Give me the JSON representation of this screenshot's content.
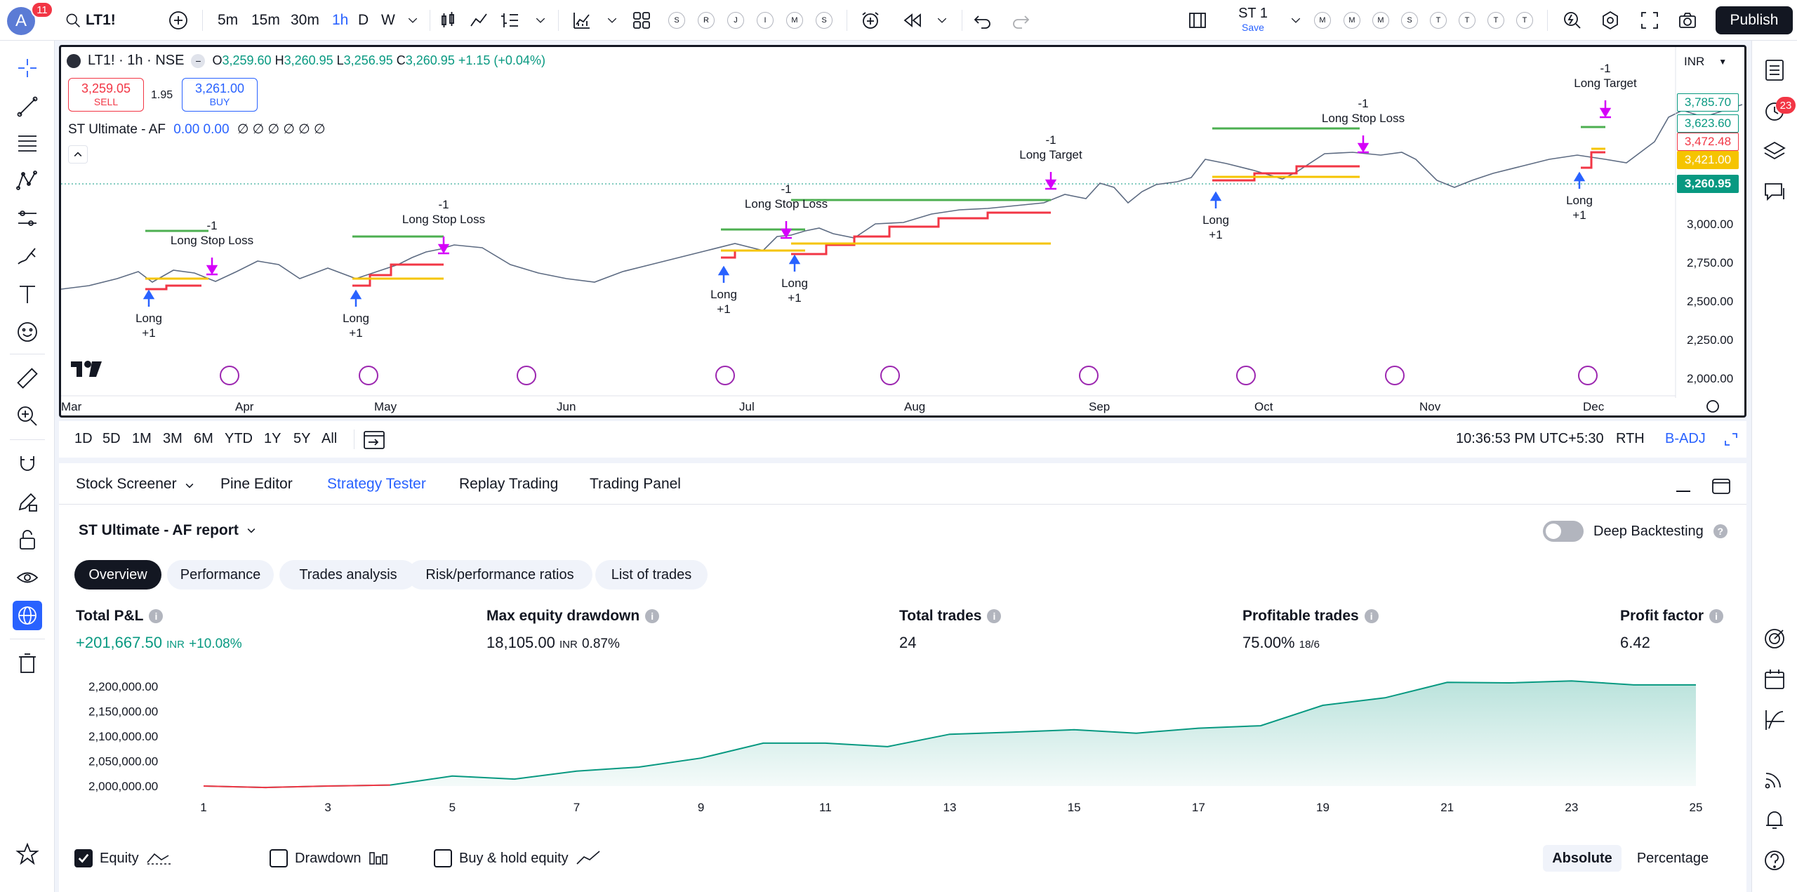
{
  "topbar": {
    "avatar_letter": "A",
    "avatar_badge": "11",
    "symbol": "LT1!",
    "intervals": [
      "5m",
      "15m",
      "30m",
      "1h",
      "D",
      "W"
    ],
    "active_interval": "1h",
    "layout_letters": [
      "S",
      "R",
      "J",
      "I",
      "M",
      "S"
    ],
    "layout_name": "ST 1",
    "layout_save": "Save",
    "watch_letters": [
      "M",
      "M",
      "M",
      "S",
      "T",
      "T",
      "T",
      "T"
    ],
    "publish_label": "Publish"
  },
  "legend": {
    "title": "LT1! · 1h · NSE",
    "o_label": "O",
    "o": "3,259.60",
    "h_label": "H",
    "h": "3,260.95",
    "l_label": "L",
    "l": "3,256.95",
    "c_label": "C",
    "c": "3,260.95",
    "change": "+1.15 (+0.04%)",
    "sell_price": "3,259.05",
    "sell_label": "SELL",
    "spread": "1.95",
    "buy_price": "3,261.00",
    "buy_label": "BUY",
    "indicator_name": "ST Ultimate - AF",
    "indicator_vals": "0.00  0.00",
    "indicator_empties": "∅ ∅ ∅ ∅ ∅ ∅"
  },
  "chart": {
    "currency": "INR",
    "price_axis": [
      "3,000.00",
      "2,750.00",
      "2,500.00",
      "2,250.00",
      "2,000.00"
    ],
    "time_axis": [
      "Mar",
      "Apr",
      "May",
      "Jun",
      "Jul",
      "Aug",
      "Sep",
      "Oct",
      "Nov",
      "Dec"
    ],
    "price_tags": [
      {
        "text": "3,785.70",
        "color": "#089981",
        "fill": "#fff"
      },
      {
        "text": "3,623.60",
        "color": "#089981",
        "fill": "#fff"
      },
      {
        "text": "3,472.48",
        "color": "#f23645",
        "fill": "#fff"
      },
      {
        "text": "3,421.00",
        "color": "#fff",
        "fill": "#f5c400"
      },
      {
        "text": "3,260.95",
        "color": "#fff",
        "fill": "#089981"
      }
    ],
    "trade_labels": [
      {
        "text": "Long",
        "sub": "+1"
      },
      {
        "text": "-1",
        "sub": "Long Stop Loss"
      },
      {
        "text": "-1",
        "sub": "Long Target"
      }
    ]
  },
  "range_bar": {
    "ranges": [
      "1D",
      "5D",
      "1M",
      "3M",
      "6M",
      "YTD",
      "1Y",
      "5Y",
      "All"
    ],
    "time": "10:36:53 PM UTC+5:30",
    "session": "RTH",
    "adj": "B-ADJ"
  },
  "bottom_tabs": {
    "items": [
      "Stock Screener",
      "Pine Editor",
      "Strategy Tester",
      "Replay Trading",
      "Trading Panel"
    ],
    "active": "Strategy Tester"
  },
  "report": {
    "title": "ST Ultimate - AF report",
    "deep_backtesting": "Deep Backtesting",
    "subtabs": [
      "Overview",
      "Performance",
      "Trades analysis",
      "Risk/performance ratios",
      "List of trades"
    ],
    "metrics": [
      {
        "label": "Total P&L",
        "value": "+201,667.50",
        "unit": "INR",
        "extra": "+10.08%"
      },
      {
        "label": "Max equity drawdown",
        "value": "18,105.00",
        "unit": "INR",
        "extra": "0.87%"
      },
      {
        "label": "Total trades",
        "value": "24",
        "unit": "",
        "extra": ""
      },
      {
        "label": "Profitable trades",
        "value": "75.00%",
        "unit": "18/6",
        "extra": ""
      },
      {
        "label": "Profit factor",
        "value": "6.42",
        "unit": "",
        "extra": ""
      }
    ],
    "legend": {
      "equity": "Equity",
      "drawdown": "Drawdown",
      "buyhold": "Buy & hold equity"
    },
    "view_toggle": [
      "Absolute",
      "Percentage"
    ]
  },
  "chart_data": {
    "type": "area",
    "x": [
      1,
      2,
      3,
      4,
      5,
      6,
      7,
      8,
      9,
      10,
      11,
      12,
      13,
      14,
      15,
      16,
      17,
      18,
      19,
      20,
      21,
      22,
      23,
      24,
      25
    ],
    "series": [
      {
        "name": "Equity",
        "values": [
          2000000,
          1997000,
          2000000,
          2002000,
          2020000,
          2014000,
          2030000,
          2038000,
          2056000,
          2086000,
          2086000,
          2079000,
          2104000,
          2108000,
          2113000,
          2106000,
          2116000,
          2121000,
          2162000,
          2177000,
          2208000,
          2207000,
          2211000,
          2203000,
          2203000
        ]
      }
    ],
    "xticks": [
      "1",
      "3",
      "5",
      "7",
      "9",
      "11",
      "13",
      "15",
      "17",
      "19",
      "21",
      "23",
      "25"
    ],
    "yticks": [
      "2,200,000.00",
      "2,150,000.00",
      "2,100,000.00",
      "2,050,000.00",
      "2,000,000.00"
    ],
    "ylim": [
      2000000,
      2200000
    ],
    "grid": false,
    "legend": "bottom-left"
  }
}
